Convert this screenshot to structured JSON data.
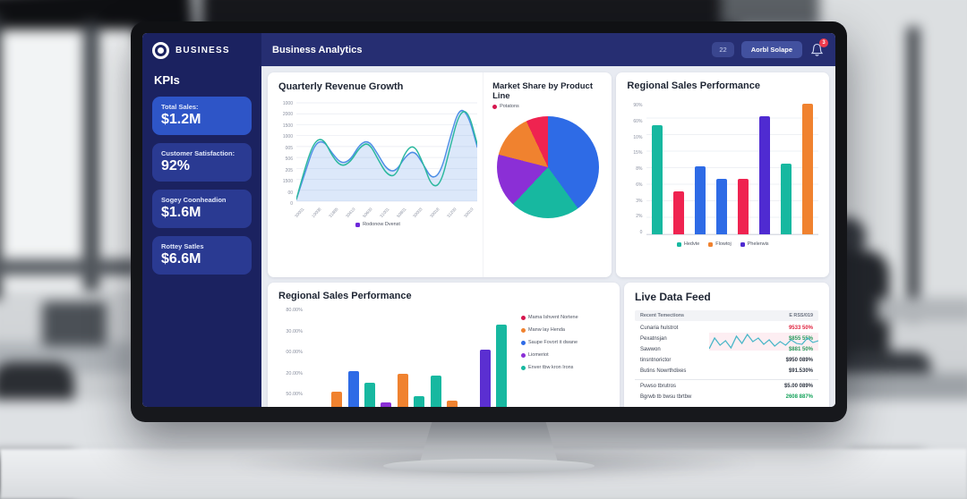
{
  "brand": {
    "name": "BUSINESS"
  },
  "navbar": {
    "title": "Business Analytics",
    "toolbar_button": "22",
    "primary_button": "Aorbl Solape",
    "notification_badge": "3"
  },
  "sidebar": {
    "section_title": "KPIs",
    "kpis": [
      {
        "label": "Total Sales:",
        "value": "$1.2M"
      },
      {
        "label": "Customer Satisfaction:",
        "value": "92%"
      },
      {
        "label": "Sogey Coonheadion",
        "value": "$1.6M"
      },
      {
        "label": "Rottey Satles",
        "value": "$6.6M"
      }
    ]
  },
  "colors": {
    "sidebar_navy": "#1b2260",
    "navbar_navy": "#262e72",
    "kpi_highlight_blue": "#2e55c7",
    "kpi_muted_blue": "#2a3a92",
    "teal": "#17b8a0",
    "blue": "#2e6be6",
    "orange": "#f0822f",
    "purple": "#5b2fd1",
    "violet": "#8b2fd6",
    "crimson": "#ef2350",
    "badge_red": "#ee3b4d"
  },
  "chart_data": [
    {
      "id": "quarterly_revenue_growth",
      "type": "line",
      "title": "Quarterly Revenue Growth",
      "ylim": [
        0,
        100
      ],
      "grid": true,
      "legend_position": "bottom",
      "y_tick_labels": [
        "1000",
        "2000",
        "1500",
        "1000",
        "005",
        "506",
        "205",
        "1500",
        "00",
        "0"
      ],
      "x_tick_labels": [
        "30001",
        "10008",
        "31885",
        "30410",
        "50600",
        "31001",
        "50801",
        "30003",
        "30018",
        "31200",
        "30010"
      ],
      "legend": [
        {
          "label": "Rodonow Dvenst",
          "color": "#6d28d9"
        }
      ],
      "series": [
        {
          "name": "revenue-blue",
          "color": "#4f8fe6",
          "fill": true,
          "values": [
            2,
            30,
            58,
            62,
            48,
            38,
            42,
            58,
            62,
            48,
            32,
            30,
            45,
            52,
            38,
            22,
            30,
            65,
            95,
            88,
            55
          ]
        },
        {
          "name": "revenue-teal",
          "color": "#2bb89e",
          "fill": false,
          "values": [
            2,
            36,
            61,
            64,
            45,
            35,
            40,
            55,
            60,
            43,
            27,
            25,
            50,
            58,
            39,
            14,
            18,
            55,
            90,
            92,
            58
          ]
        }
      ]
    },
    {
      "id": "market_share_by_product_line",
      "type": "pie",
      "title": "Market Share by Product Line",
      "legend": [
        {
          "label": "Potatons",
          "color": "#d6164e"
        }
      ],
      "slices": [
        {
          "name": "blue",
          "value": 40,
          "color": "#2e6be6"
        },
        {
          "name": "teal",
          "value": 22,
          "color": "#17b8a0"
        },
        {
          "name": "purple",
          "value": 17,
          "color": "#8b2fd6"
        },
        {
          "name": "orange",
          "value": 14,
          "color": "#f0822f"
        },
        {
          "name": "crimson",
          "value": 7,
          "color": "#ef2350"
        }
      ]
    },
    {
      "id": "regional_sales_performance_top",
      "type": "bar",
      "title": "Regional Sales Performance",
      "ylim": [
        0,
        100
      ],
      "grid": true,
      "y_tick_labels": [
        "90%",
        "60%",
        "10%",
        "15%",
        "8%",
        "6%",
        "3%",
        "2%",
        "0"
      ],
      "bars": [
        {
          "value": 83,
          "color": "#17b8a0"
        },
        {
          "value": 33,
          "color": "#ef2350"
        },
        {
          "value": 52,
          "color": "#2e6be6"
        },
        {
          "value": 42,
          "color": "#2e6be6"
        },
        {
          "value": 42,
          "color": "#ef2350"
        },
        {
          "value": 90,
          "color": "#4f2bd1"
        },
        {
          "value": 54,
          "color": "#17b8a0"
        },
        {
          "value": 99,
          "color": "#f0822f"
        }
      ],
      "legend": [
        {
          "label": "Hedvte",
          "color": "#17b8a0"
        },
        {
          "label": "Flowtoj",
          "color": "#f0822f"
        },
        {
          "label": "Phelerwis",
          "color": "#4f2bd1"
        }
      ],
      "legend_position": "bottom"
    },
    {
      "id": "regional_sales_performance_bottom",
      "type": "bar",
      "title": "Regional Sales Performance",
      "ylim": [
        0,
        100
      ],
      "grid": false,
      "y_tick_labels": [
        "80.00%",
        "30.00%",
        "00.00%",
        "20.00%",
        "50.00%"
      ],
      "bars": [
        {
          "value": 8,
          "color": "#2e6be6"
        },
        {
          "value": 22,
          "color": "#f0822f"
        },
        {
          "value": 40,
          "color": "#2e6be6"
        },
        {
          "value": 30,
          "color": "#17b8a0"
        },
        {
          "value": 12,
          "color": "#8b2fd6"
        },
        {
          "value": 38,
          "color": "#f0822f"
        },
        {
          "value": 18,
          "color": "#17b8a0"
        },
        {
          "value": 36,
          "color": "#17b8a0"
        },
        {
          "value": 14,
          "color": "#f0822f"
        },
        {
          "value": 3,
          "color": "#17b8a0"
        },
        {
          "value": 60,
          "color": "#5b2fd1"
        },
        {
          "value": 82,
          "color": "#17b8a0"
        }
      ],
      "legend": [
        {
          "label": "Mama Ishvent Nortene",
          "color": "#d6164e"
        },
        {
          "label": "Manw lay Henda",
          "color": "#f0822f"
        },
        {
          "label": "Saupe Fovort it dwane",
          "color": "#2e6be6"
        },
        {
          "label": "Liomeriot",
          "color": "#8b2fd6"
        },
        {
          "label": "Enver tbw kron Irons",
          "color": "#17b8a0"
        }
      ],
      "legend_position": "right"
    }
  ],
  "live_feed": {
    "title": "Live Data Feed",
    "header_left": "Recent Temections",
    "header_right": "E RSS/019",
    "rows": [
      {
        "label": "Cunaria hulstrot",
        "value": "9533 50%",
        "tone": "red"
      },
      {
        "label": "Pexatnsjan",
        "value": "$855 55%",
        "tone": "green"
      },
      {
        "label": "Sawwon",
        "value": "$881 50%",
        "tone": "green"
      },
      {
        "label": "tinsntnorictor",
        "value": "$950 089%",
        "tone": "dark"
      },
      {
        "label": "Butins Nowrthdixes",
        "value": "$91.530%",
        "tone": "dark"
      },
      {
        "label": "Puwso tbrutros",
        "value": "$5.00 089%",
        "tone": "dark"
      },
      {
        "label": "Bgrwb tb bwsu tbrtbw",
        "value": "2608 887%",
        "tone": "green"
      }
    ],
    "sparkline": {
      "color": "#49b6c8",
      "points": [
        18,
        6,
        14,
        9,
        17,
        4,
        12,
        2,
        10,
        6,
        13,
        8,
        15,
        10,
        14,
        8,
        12,
        13,
        6,
        11,
        9
      ]
    }
  }
}
